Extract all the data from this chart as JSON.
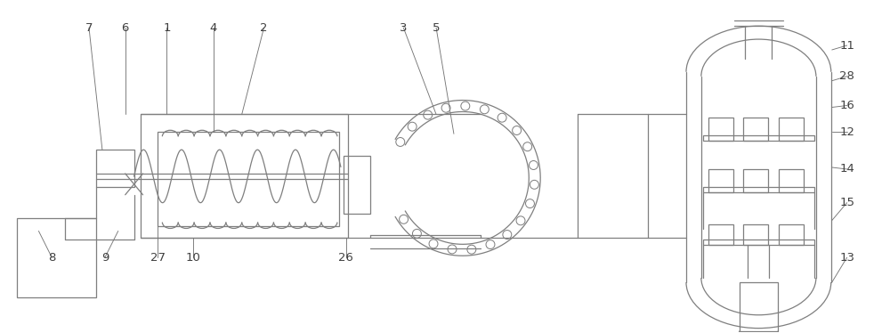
{
  "fig_width": 10.0,
  "fig_height": 3.74,
  "dpi": 100,
  "bg_color": "#ffffff",
  "line_color": "#7f7f7f",
  "lw": 0.9
}
